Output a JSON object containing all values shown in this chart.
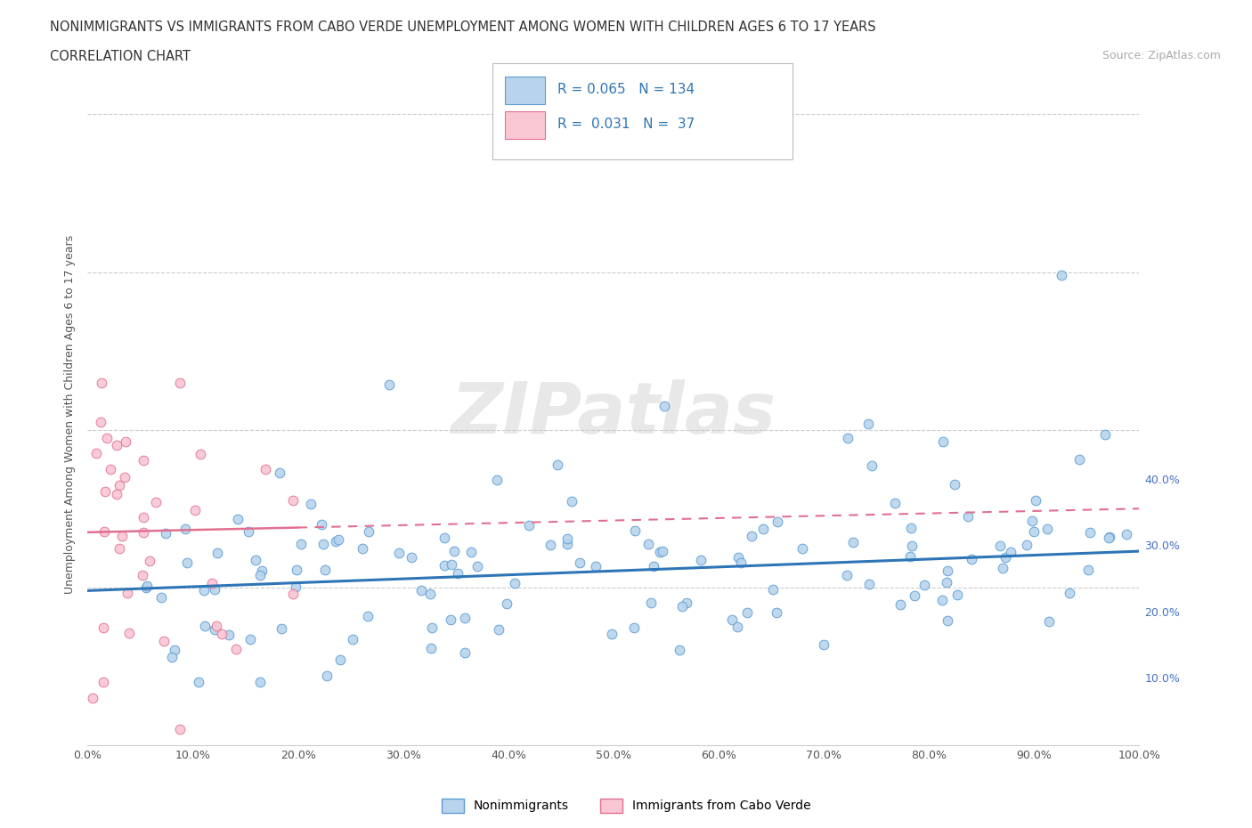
{
  "title_line1": "NONIMMIGRANTS VS IMMIGRANTS FROM CABO VERDE UNEMPLOYMENT AMONG WOMEN WITH CHILDREN AGES 6 TO 17 YEARS",
  "title_line2": "CORRELATION CHART",
  "source_text": "Source: ZipAtlas.com",
  "ylabel": "Unemployment Among Women with Children Ages 6 to 17 years",
  "xlim": [
    0.0,
    1.0
  ],
  "ylim": [
    0.0,
    0.42
  ],
  "xtick_labels": [
    "0.0%",
    "10.0%",
    "20.0%",
    "30.0%",
    "40.0%",
    "50.0%",
    "60.0%",
    "70.0%",
    "80.0%",
    "90.0%",
    "100.0%"
  ],
  "xtick_vals": [
    0.0,
    0.1,
    0.2,
    0.3,
    0.4,
    0.5,
    0.6,
    0.7,
    0.8,
    0.9,
    1.0
  ],
  "ytick_labels": [
    "10.0%",
    "20.0%",
    "30.0%",
    "40.0%"
  ],
  "ytick_vals": [
    0.1,
    0.2,
    0.3,
    0.4
  ],
  "nonimm_R": 0.065,
  "nonimm_N": 134,
  "imm_R": 0.031,
  "imm_N": 37,
  "nonimm_color": "#b8d4ed",
  "nonimm_edge_color": "#5b9bd5",
  "imm_color": "#f9c6d4",
  "imm_edge_color": "#e07090",
  "nonimm_line_color": "#2e75b6",
  "imm_line_color": "#e07090",
  "legend_label_nonimm": "Nonimmigrants",
  "legend_label_imm": "Immigrants from Cabo Verde",
  "background_color": "#ffffff",
  "grid_color": "#cccccc",
  "nonimm_trend_intercept": 0.098,
  "nonimm_trend_slope": 0.025,
  "imm_trend_intercept": 0.135,
  "imm_trend_slope": 0.015
}
